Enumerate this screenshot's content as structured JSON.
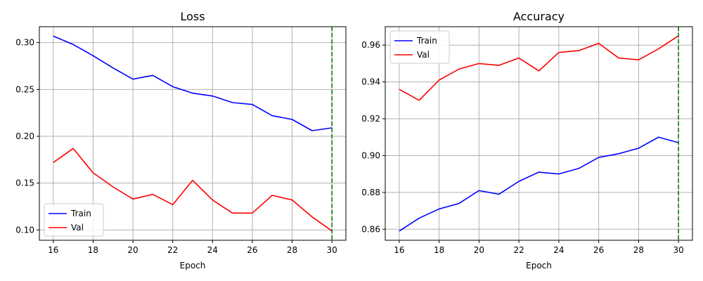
{
  "chart_data": [
    {
      "type": "line",
      "title": "Loss",
      "xlabel": "Epoch",
      "ylabel": "",
      "x": [
        16,
        17,
        18,
        19,
        20,
        21,
        22,
        23,
        24,
        25,
        26,
        27,
        28,
        29,
        30
      ],
      "series": [
        {
          "name": "Train",
          "color": "#0000ff",
          "values": [
            0.307,
            0.298,
            0.286,
            0.273,
            0.261,
            0.265,
            0.253,
            0.246,
            0.243,
            0.236,
            0.234,
            0.222,
            0.218,
            0.206,
            0.209
          ]
        },
        {
          "name": "Val",
          "color": "#ff0000",
          "values": [
            0.172,
            0.187,
            0.161,
            0.146,
            0.133,
            0.138,
            0.127,
            0.153,
            0.132,
            0.118,
            0.118,
            0.137,
            0.132,
            0.114,
            0.099
          ]
        }
      ],
      "xlim": [
        15.3,
        30.7
      ],
      "ylim": [
        0.089,
        0.317
      ],
      "xticks": [
        16,
        18,
        20,
        22,
        24,
        26,
        28,
        30
      ],
      "xtick_labels": [
        "16",
        "18",
        "20",
        "22",
        "24",
        "26",
        "28",
        "30"
      ],
      "yticks": [
        0.1,
        0.15,
        0.2,
        0.25,
        0.3
      ],
      "ytick_labels": [
        "0.10",
        "0.15",
        "0.20",
        "0.25",
        "0.30"
      ],
      "vline": {
        "x": 30,
        "color": "#008000",
        "style": "dashed"
      },
      "grid": true,
      "legend_position": "bottom-left"
    },
    {
      "type": "line",
      "title": "Accuracy",
      "xlabel": "Epoch",
      "ylabel": "",
      "x": [
        16,
        17,
        18,
        19,
        20,
        21,
        22,
        23,
        24,
        25,
        26,
        27,
        28,
        29,
        30
      ],
      "series": [
        {
          "name": "Train",
          "color": "#0000ff",
          "values": [
            0.859,
            0.866,
            0.871,
            0.874,
            0.881,
            0.879,
            0.886,
            0.891,
            0.89,
            0.893,
            0.899,
            0.901,
            0.904,
            0.91,
            0.907
          ]
        },
        {
          "name": "Val",
          "color": "#ff0000",
          "values": [
            0.936,
            0.93,
            0.941,
            0.947,
            0.95,
            0.949,
            0.953,
            0.946,
            0.956,
            0.957,
            0.961,
            0.953,
            0.952,
            0.958,
            0.965
          ]
        }
      ],
      "xlim": [
        15.3,
        30.7
      ],
      "ylim": [
        0.854,
        0.97
      ],
      "xticks": [
        16,
        18,
        20,
        22,
        24,
        26,
        28,
        30
      ],
      "xtick_labels": [
        "16",
        "18",
        "20",
        "22",
        "24",
        "26",
        "28",
        "30"
      ],
      "yticks": [
        0.86,
        0.88,
        0.9,
        0.92,
        0.94,
        0.96
      ],
      "ytick_labels": [
        "0.86",
        "0.88",
        "0.90",
        "0.92",
        "0.94",
        "0.96"
      ],
      "vline": {
        "x": 30,
        "color": "#008000",
        "style": "dashed"
      },
      "grid": true,
      "legend_position": "top-left"
    }
  ]
}
